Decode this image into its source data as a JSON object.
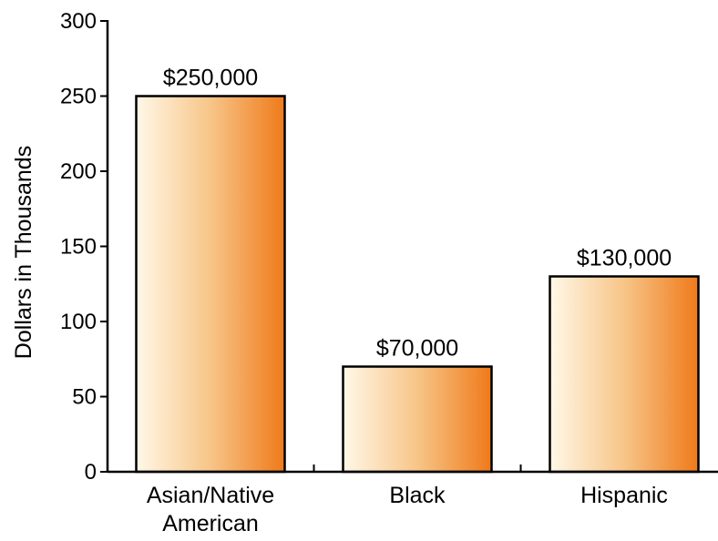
{
  "chart_data": {
    "type": "bar",
    "ylabel": "Dollars in Thousands",
    "ylim": [
      0,
      300
    ],
    "yticks": [
      0,
      50,
      100,
      150,
      200,
      250,
      300
    ],
    "grid": false,
    "categories": [
      {
        "lines": [
          "Asian/Native",
          "American"
        ]
      },
      {
        "lines": [
          "Black"
        ]
      },
      {
        "lines": [
          "Hispanic"
        ]
      }
    ],
    "values": [
      250,
      70,
      130
    ],
    "data_labels": [
      "$250,000",
      "$70,000",
      "$130,000"
    ],
    "bar_gradient": [
      "#fff8e8",
      "#f7c588",
      "#ef7a1a"
    ]
  }
}
